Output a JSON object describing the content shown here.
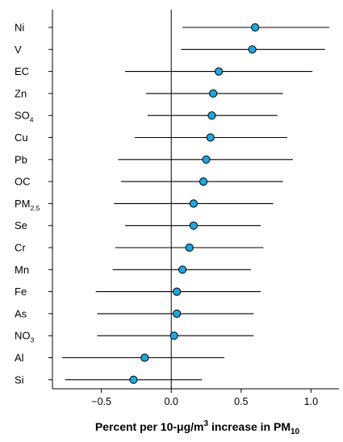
{
  "chart_data": {
    "type": "scatter",
    "subtype": "forest-plot",
    "title": "",
    "xlabel": "Percent per 10-μg/m³ increase in PM₁₀",
    "xlabel_parts": [
      {
        "t": "Percent per 10-",
        "s": "normal"
      },
      {
        "t": "μ",
        "s": "normal"
      },
      {
        "t": "g/m",
        "s": "normal"
      },
      {
        "t": "3",
        "s": "sup"
      },
      {
        "t": " increase in PM",
        "s": "normal"
      },
      {
        "t": "10",
        "s": "sub"
      }
    ],
    "ylabel": "",
    "xlim": [
      -0.85,
      1.2
    ],
    "xticks": [
      -0.5,
      0.0,
      0.5,
      1.0
    ],
    "xtick_labels": [
      "−0.5",
      "0.0",
      "0.5",
      "1.0"
    ],
    "reference_line": 0.0,
    "grid": false,
    "legend": "none",
    "marker_color": "#1ea7e1",
    "categories": [
      {
        "label": "Ni",
        "sub": "",
        "estimate": 0.6,
        "lower": 0.08,
        "upper": 1.13
      },
      {
        "label": "V",
        "sub": "",
        "estimate": 0.58,
        "lower": 0.07,
        "upper": 1.1
      },
      {
        "label": "EC",
        "sub": "",
        "estimate": 0.34,
        "lower": -0.33,
        "upper": 1.01
      },
      {
        "label": "Zn",
        "sub": "",
        "estimate": 0.3,
        "lower": -0.18,
        "upper": 0.8
      },
      {
        "label": "SO",
        "sub": "4",
        "estimate": 0.29,
        "lower": -0.17,
        "upper": 0.76
      },
      {
        "label": "Cu",
        "sub": "",
        "estimate": 0.28,
        "lower": -0.26,
        "upper": 0.83
      },
      {
        "label": "Pb",
        "sub": "",
        "estimate": 0.25,
        "lower": -0.38,
        "upper": 0.87
      },
      {
        "label": "OC",
        "sub": "",
        "estimate": 0.23,
        "lower": -0.36,
        "upper": 0.8
      },
      {
        "label": "PM",
        "sub": "2.5",
        "estimate": 0.16,
        "lower": -0.41,
        "upper": 0.73
      },
      {
        "label": "Se",
        "sub": "",
        "estimate": 0.16,
        "lower": -0.33,
        "upper": 0.64
      },
      {
        "label": "Cr",
        "sub": "",
        "estimate": 0.13,
        "lower": -0.4,
        "upper": 0.66
      },
      {
        "label": "Mn",
        "sub": "",
        "estimate": 0.08,
        "lower": -0.42,
        "upper": 0.57
      },
      {
        "label": "Fe",
        "sub": "",
        "estimate": 0.04,
        "lower": -0.54,
        "upper": 0.64
      },
      {
        "label": "As",
        "sub": "",
        "estimate": 0.04,
        "lower": -0.53,
        "upper": 0.59
      },
      {
        "label": "NO",
        "sub": "3",
        "estimate": 0.02,
        "lower": -0.53,
        "upper": 0.59
      },
      {
        "label": "Al",
        "sub": "",
        "estimate": -0.19,
        "lower": -0.78,
        "upper": 0.38
      },
      {
        "label": "Si",
        "sub": "",
        "estimate": -0.27,
        "lower": -0.76,
        "upper": 0.22
      }
    ]
  }
}
